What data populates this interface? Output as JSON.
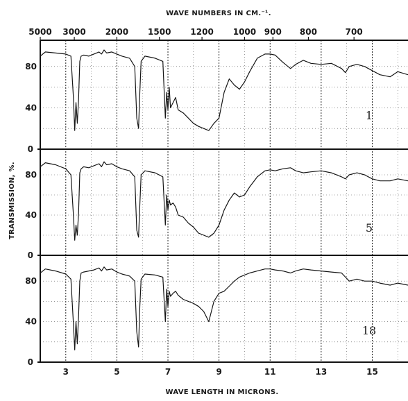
{
  "chart_data": {
    "type": "line",
    "title": "",
    "top_axis_label": "WAVE NUMBERS IN CM.⁻¹.",
    "xlabel": "WAVE LENGTH IN MICRONS.",
    "ylabel": "TRANSMISSION, %.",
    "xlim": [
      2,
      16.4
    ],
    "ylim": [
      0,
      100
    ],
    "grid": true,
    "x_ticks": [
      3,
      5,
      7,
      9,
      11,
      13,
      15
    ],
    "top_ticks": [
      {
        "label": "5000",
        "wavenumber": 5000
      },
      {
        "label": "3000",
        "wavenumber": 3000
      },
      {
        "label": "2000",
        "wavenumber": 2000
      },
      {
        "label": "1500",
        "wavenumber": 1500
      },
      {
        "label": "1200",
        "wavenumber": 1200
      },
      {
        "label": "1000",
        "wavenumber": 1000
      },
      {
        "label": "900",
        "wavenumber": 900
      },
      {
        "label": "800",
        "wavenumber": 800
      },
      {
        "label": "700",
        "wavenumber": 700
      }
    ],
    "panels": [
      {
        "number": "1",
        "y_ticks": [
          80,
          40
        ],
        "x": [
          2.0,
          2.2,
          2.6,
          3.0,
          3.2,
          3.3,
          3.35,
          3.4,
          3.45,
          3.5,
          3.55,
          3.6,
          3.7,
          3.9,
          4.1,
          4.3,
          4.4,
          4.5,
          4.6,
          4.8,
          5.0,
          5.2,
          5.5,
          5.7,
          5.78,
          5.85,
          5.9,
          5.95,
          6.1,
          6.5,
          6.8,
          6.9,
          6.95,
          7.0,
          7.05,
          7.1,
          7.2,
          7.3,
          7.4,
          7.6,
          7.8,
          8.0,
          8.2,
          8.4,
          8.6,
          8.8,
          9.0,
          9.2,
          9.4,
          9.6,
          9.8,
          10.0,
          10.2,
          10.5,
          10.8,
          11.0,
          11.2,
          11.5,
          11.8,
          12.0,
          12.3,
          12.6,
          13.0,
          13.4,
          13.8,
          13.95,
          14.1,
          14.4,
          14.7,
          15.0,
          15.3,
          15.7,
          16.0,
          16.4
        ],
        "y": [
          90,
          94,
          93,
          92,
          90,
          50,
          18,
          45,
          25,
          48,
          85,
          90,
          91,
          90,
          92,
          94,
          92,
          96,
          93,
          94,
          92,
          90,
          88,
          80,
          30,
          20,
          55,
          85,
          90,
          88,
          85,
          30,
          55,
          38,
          60,
          40,
          45,
          50,
          38,
          35,
          30,
          25,
          22,
          20,
          18,
          25,
          30,
          55,
          68,
          62,
          58,
          65,
          75,
          88,
          92,
          92,
          91,
          84,
          78,
          82,
          86,
          83,
          82,
          83,
          78,
          74,
          80,
          82,
          80,
          76,
          72,
          70,
          75,
          72
        ]
      },
      {
        "number": "5",
        "y_ticks": [
          80,
          40
        ],
        "x": [
          2.0,
          2.2,
          2.6,
          3.0,
          3.2,
          3.3,
          3.35,
          3.4,
          3.45,
          3.5,
          3.55,
          3.6,
          3.7,
          3.9,
          4.1,
          4.3,
          4.4,
          4.5,
          4.6,
          4.8,
          5.0,
          5.2,
          5.5,
          5.7,
          5.78,
          5.85,
          5.9,
          5.95,
          6.1,
          6.5,
          6.8,
          6.9,
          6.95,
          7.0,
          7.05,
          7.1,
          7.2,
          7.3,
          7.4,
          7.6,
          7.8,
          8.0,
          8.2,
          8.4,
          8.6,
          8.8,
          9.0,
          9.2,
          9.4,
          9.6,
          9.8,
          10.0,
          10.2,
          10.5,
          10.8,
          11.0,
          11.2,
          11.5,
          11.8,
          12.0,
          12.3,
          12.6,
          13.0,
          13.4,
          13.8,
          13.95,
          14.1,
          14.4,
          14.7,
          15.0,
          15.3,
          15.7,
          16.0,
          16.4
        ],
        "y": [
          88,
          92,
          90,
          86,
          80,
          40,
          15,
          30,
          20,
          42,
          82,
          86,
          88,
          87,
          89,
          91,
          88,
          93,
          90,
          91,
          88,
          86,
          84,
          78,
          25,
          18,
          50,
          80,
          84,
          82,
          78,
          30,
          60,
          45,
          55,
          50,
          52,
          48,
          40,
          38,
          32,
          28,
          22,
          20,
          18,
          22,
          30,
          45,
          55,
          62,
          58,
          60,
          68,
          78,
          84,
          85,
          84,
          86,
          87,
          84,
          82,
          83,
          84,
          82,
          78,
          76,
          80,
          82,
          80,
          76,
          74,
          74,
          76,
          74
        ]
      },
      {
        "number": "18",
        "y_ticks": [
          80,
          40
        ],
        "x": [
          2.0,
          2.2,
          2.6,
          3.0,
          3.2,
          3.3,
          3.35,
          3.4,
          3.45,
          3.5,
          3.55,
          3.6,
          3.7,
          3.9,
          4.1,
          4.3,
          4.4,
          4.5,
          4.6,
          4.8,
          5.0,
          5.2,
          5.5,
          5.7,
          5.78,
          5.85,
          5.9,
          5.95,
          6.1,
          6.5,
          6.8,
          6.9,
          6.95,
          7.0,
          7.05,
          7.1,
          7.2,
          7.3,
          7.4,
          7.6,
          7.8,
          8.0,
          8.2,
          8.4,
          8.6,
          8.8,
          9.0,
          9.2,
          9.4,
          9.6,
          9.8,
          10.0,
          10.2,
          10.5,
          10.8,
          11.0,
          11.2,
          11.5,
          11.8,
          12.0,
          12.3,
          12.6,
          13.0,
          13.4,
          13.8,
          13.95,
          14.1,
          14.4,
          14.7,
          15.0,
          15.3,
          15.7,
          16.0,
          16.4
        ],
        "y": [
          88,
          92,
          90,
          87,
          82,
          38,
          12,
          40,
          18,
          45,
          80,
          88,
          89,
          90,
          91,
          93,
          90,
          94,
          91,
          92,
          89,
          87,
          85,
          80,
          30,
          15,
          55,
          82,
          87,
          86,
          84,
          40,
          72,
          55,
          70,
          65,
          68,
          70,
          66,
          62,
          60,
          58,
          55,
          50,
          40,
          60,
          68,
          70,
          75,
          80,
          84,
          86,
          88,
          90,
          92,
          92,
          91,
          90,
          88,
          90,
          92,
          91,
          90,
          89,
          88,
          84,
          80,
          82,
          80,
          80,
          78,
          76,
          78,
          76
        ]
      }
    ]
  }
}
